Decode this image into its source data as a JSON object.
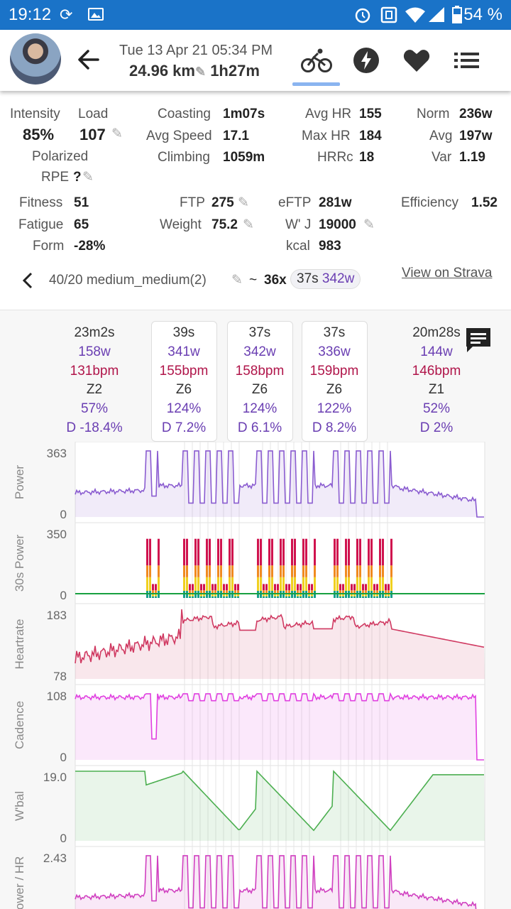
{
  "status_bar": {
    "time": "19:12",
    "battery": "54 %",
    "icons": [
      "sync-icon",
      "image-icon",
      "alarm-icon",
      "nfc-icon",
      "wifi-icon",
      "signal-icon",
      "battery-icon"
    ]
  },
  "header": {
    "date": "Tue 13 Apr 21 05:34 PM",
    "distance": "24.96 km",
    "duration": "1h27m",
    "tabs": [
      "bike-icon",
      "bolt-icon",
      "heart-icon",
      "list-icon"
    ]
  },
  "stats": {
    "intensity_label": "Intensity",
    "intensity_value": "85%",
    "load_label": "Load",
    "load_value": "107",
    "polarized_label": "Polarized",
    "rpe_label": "RPE",
    "rpe_value": "?",
    "coasting_label": "Coasting",
    "coasting_value": "1m07s",
    "avg_speed_label": "Avg Speed",
    "avg_speed_value": "17.1",
    "climbing_label": "Climbing",
    "climbing_value": "1059m",
    "avg_hr_label": "Avg HR",
    "avg_hr_value": "155",
    "max_hr_label": "Max HR",
    "max_hr_value": "184",
    "hrrc_label": "HRRc",
    "hrrc_value": "18",
    "norm_label": "Norm",
    "norm_value": "236w",
    "avg_label": "Avg",
    "avg_value": "197w",
    "var_label": "Var",
    "var_value": "1.19",
    "fitness_label": "Fitness",
    "fitness_value": "51",
    "fatigue_label": "Fatigue",
    "fatigue_value": "65",
    "form_label": "Form",
    "form_value": "-28%",
    "ftp_label": "FTP",
    "ftp_value": "275",
    "weight_label": "Weight",
    "weight_value": "75.2",
    "eftp_label": "eFTP",
    "eftp_value": "281w",
    "wj_label": "W' J",
    "wj_value": "19000",
    "kcal_label": "kcal",
    "kcal_value": "983",
    "efficiency_label": "Efficiency",
    "efficiency_value": "1.52"
  },
  "interval_bar": {
    "name": "40/20 medium_medium(2)",
    "tilde": "~",
    "count": "36x",
    "chip_time": "37s",
    "chip_watts": "342w",
    "strava_link": "View on Strava"
  },
  "intervals": [
    {
      "time": "23m2s",
      "power": "158w",
      "hr": "131bpm",
      "zone": "Z2",
      "pct": "57%",
      "drift": "D -18.4%"
    },
    {
      "time": "39s",
      "power": "341w",
      "hr": "155bpm",
      "zone": "Z6",
      "pct": "124%",
      "drift": "D 7.2%"
    },
    {
      "time": "37s",
      "power": "342w",
      "hr": "158bpm",
      "zone": "Z6",
      "pct": "124%",
      "drift": "D 6.1%"
    },
    {
      "time": "37s",
      "power": "336w",
      "hr": "159bpm",
      "zone": "Z6",
      "pct": "122%",
      "drift": "D 8.2%"
    },
    {
      "time": "20m28s",
      "power": "144w",
      "hr": "146bpm",
      "zone": "Z1",
      "pct": "52%",
      "drift": "D 2%"
    }
  ],
  "charts": [
    {
      "label": "Power",
      "max": "363",
      "min": "0",
      "color": "#8a5cd0"
    },
    {
      "label": "30s Power",
      "max": "350",
      "min": "0",
      "color": "#d0124e"
    },
    {
      "label": "Heartrate",
      "max": "183",
      "min": "78",
      "color": "#d03a62"
    },
    {
      "label": "Cadence",
      "max": "108",
      "min": "0",
      "color": "#e040e0"
    },
    {
      "label": "W'bal",
      "max": "19.0",
      "min": "0",
      "color": "#4caf50"
    },
    {
      "label": "Power / HR",
      "max": "2.43",
      "min": "",
      "color": "#d040c0"
    }
  ]
}
